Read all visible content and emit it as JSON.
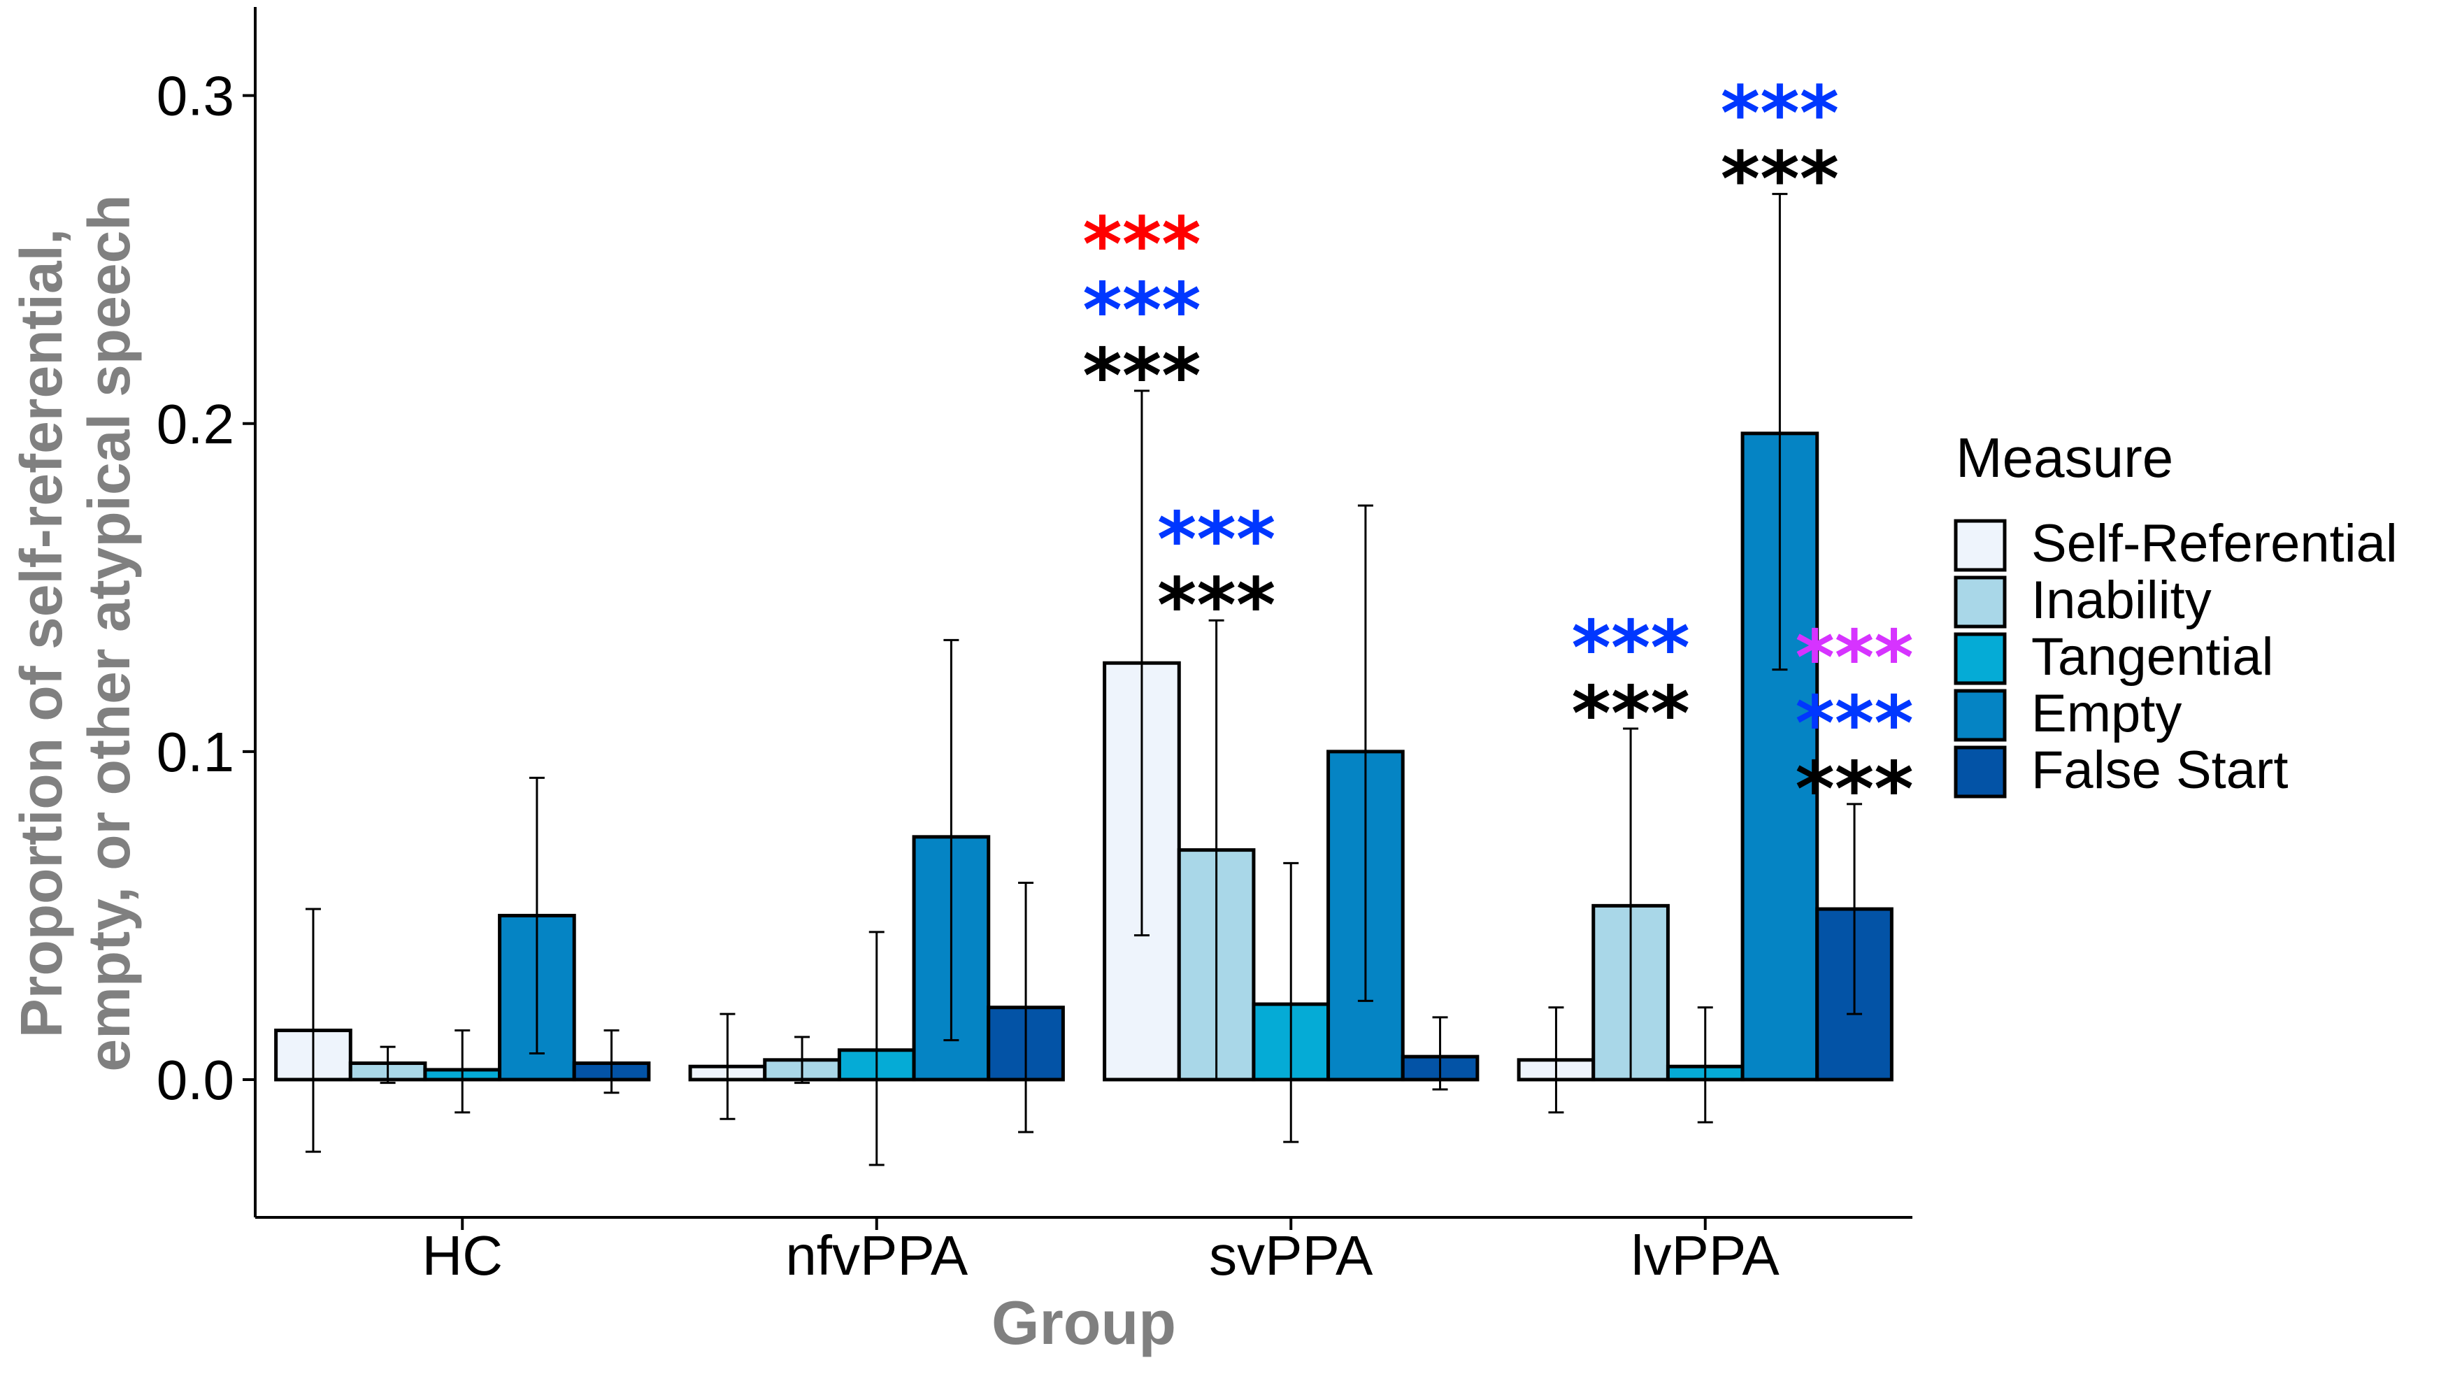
{
  "chart_data": {
    "type": "bar",
    "title": "",
    "xlabel": "Group",
    "ylabel_lines": [
      "Proportion of self-referential,",
      "empty, or other atypical speech"
    ],
    "categories": [
      "HC",
      "nfvPPA",
      "svPPA",
      "lvPPA"
    ],
    "ylim": [
      -0.042,
      0.327
    ],
    "yticks": [
      0.0,
      0.1,
      0.2,
      0.3
    ],
    "ytick_labels": [
      "0.0",
      "0.1",
      "0.2",
      "0.3"
    ],
    "grid": false,
    "legend": {
      "title": "Measure",
      "placement": "right"
    },
    "series": [
      {
        "name": "Self-Referential",
        "color": "#eef4fc",
        "values": [
          0.015,
          0.004,
          0.127,
          0.006
        ],
        "err_low": [
          -0.022,
          -0.012,
          0.044,
          -0.01
        ],
        "err_high": [
          0.052,
          0.02,
          0.21,
          0.022
        ]
      },
      {
        "name": "Inability",
        "color": "#a9d7e8",
        "values": [
          0.005,
          0.006,
          0.07,
          0.053
        ],
        "err_low": [
          -0.001,
          -0.001,
          0.0,
          0.0
        ],
        "err_high": [
          0.01,
          0.013,
          0.14,
          0.107
        ]
      },
      {
        "name": "Tangential",
        "color": "#05abd6",
        "values": [
          0.003,
          0.009,
          0.023,
          0.004
        ],
        "err_low": [
          -0.01,
          -0.026,
          -0.019,
          -0.013
        ],
        "err_high": [
          0.015,
          0.045,
          0.066,
          0.022
        ]
      },
      {
        "name": "Empty",
        "color": "#0584c4",
        "values": [
          0.05,
          0.074,
          0.1,
          0.197
        ],
        "err_low": [
          0.008,
          0.012,
          0.024,
          0.125
        ],
        "err_high": [
          0.092,
          0.134,
          0.175,
          0.27
        ]
      },
      {
        "name": "False Start",
        "color": "#0353a6",
        "values": [
          0.005,
          0.022,
          0.007,
          0.052
        ],
        "err_low": [
          -0.004,
          -0.016,
          -0.003,
          0.02
        ],
        "err_high": [
          0.015,
          0.06,
          0.019,
          0.084
        ]
      }
    ],
    "annotations": [
      {
        "category": "svPPA",
        "series": "Self-Referential",
        "marks": [
          {
            "text": "***",
            "color": "#ff0000"
          },
          {
            "text": "***",
            "color": "#0037ff"
          },
          {
            "text": "***",
            "color": "#000000"
          }
        ]
      },
      {
        "category": "svPPA",
        "series": "Inability",
        "marks": [
          {
            "text": "***",
            "color": "#0037ff"
          },
          {
            "text": "***",
            "color": "#000000"
          }
        ]
      },
      {
        "category": "lvPPA",
        "series": "Inability",
        "marks": [
          {
            "text": "***",
            "color": "#0037ff"
          },
          {
            "text": "***",
            "color": "#000000"
          }
        ]
      },
      {
        "category": "lvPPA",
        "series": "Empty",
        "marks": [
          {
            "text": "***",
            "color": "#0037ff"
          },
          {
            "text": "***",
            "color": "#000000"
          }
        ]
      },
      {
        "category": "lvPPA",
        "series": "False Start",
        "marks": [
          {
            "text": "***",
            "color": "#d633ff"
          },
          {
            "text": "***",
            "color": "#0037ff"
          },
          {
            "text": "***",
            "color": "#000000"
          }
        ]
      }
    ]
  }
}
